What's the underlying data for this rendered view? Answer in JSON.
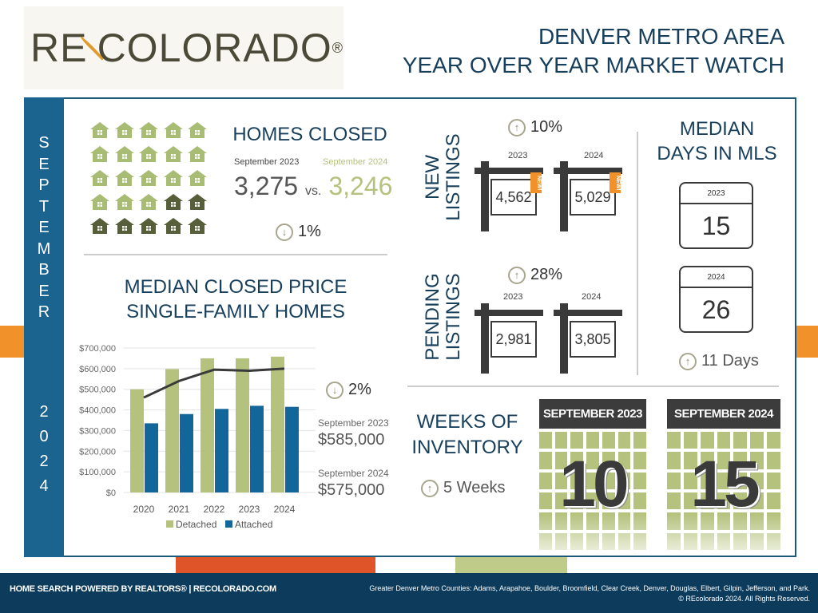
{
  "logo": {
    "text_left": "RE",
    "text_right": "COLORADO",
    "mark": "®"
  },
  "header": {
    "line1": "DENVER METRO AREA",
    "line2": "YEAR OVER YEAR MARKET WATCH"
  },
  "sidebar": {
    "month_letters": [
      "S",
      "E",
      "P",
      "T",
      "E",
      "M",
      "B",
      "E",
      "R"
    ],
    "year_digits": [
      "2",
      "0",
      "2",
      "4"
    ]
  },
  "colors": {
    "accent_blue": "#1b6490",
    "navy": "#173f5c",
    "green": "#a9bc74",
    "dark_green": "#575f3a",
    "orange": "#f0912a",
    "footer": "#0d3b5b"
  },
  "homes_closed": {
    "title": "HOMES CLOSED",
    "label_2023": "September 2023",
    "label_2024": "September 2024",
    "value_2023": "3,275",
    "vs": "vs.",
    "value_2024": "3,246",
    "change_icon": "arrow-down-circle",
    "change": "1%",
    "light_houses": 18,
    "dark_houses": 7
  },
  "median_price": {
    "title_line1": "MEDIAN CLOSED PRICE",
    "title_line2": "SINGLE-FAMILY HOMES",
    "change_icon": "arrow-down-circle",
    "change": "2%",
    "label_2023": "September 2023",
    "value_2023": "$585,000",
    "label_2024": "September 2024",
    "value_2024": "$575,000"
  },
  "chart_data": {
    "type": "bar",
    "categories": [
      "2020",
      "2021",
      "2022",
      "2023",
      "2024"
    ],
    "series": [
      {
        "name": "Detached",
        "color": "#b5c27d",
        "values": [
          500000,
          598000,
          650000,
          650000,
          658000
        ]
      },
      {
        "name": "Attached",
        "color": "#136699",
        "values": [
          335000,
          380000,
          405000,
          420000,
          415000
        ]
      }
    ],
    "line": {
      "type": "line",
      "color": "#3a3a3a",
      "values": [
        460000,
        540000,
        595000,
        590000,
        600000
      ]
    },
    "yticks": [
      "$0",
      "$100,000",
      "$200,000",
      "$300,000",
      "$400,000",
      "$500,000",
      "$600,000",
      "$700,000"
    ],
    "ylim": [
      0,
      700000
    ],
    "grid": true,
    "legend": "bottom"
  },
  "new_listings": {
    "title_line1": "NEW",
    "title_line2": "LISTINGS",
    "change_icon": "arrow-up-circle",
    "change": "10%",
    "year_2023": "2023",
    "year_2024": "2024",
    "value_2023": "4,562",
    "value_2024": "5,029",
    "ribbon": "NEW!"
  },
  "pending_listings": {
    "title_line1": "PENDING",
    "title_line2": "LISTINGS",
    "change_icon": "arrow-up-circle",
    "change": "28%",
    "year_2023": "2023",
    "year_2024": "2024",
    "value_2023": "2,981",
    "value_2024": "3,805"
  },
  "days_in_mls": {
    "title_line1": "MEDIAN",
    "title_line2": "DAYS IN MLS",
    "year_2023": "2023",
    "value_2023": "15",
    "year_2024": "2024",
    "value_2024": "26",
    "change_icon": "arrow-up-circle",
    "change": "11 Days"
  },
  "weeks_inventory": {
    "title_line1": "WEEKS OF",
    "title_line2": "INVENTORY",
    "change_icon": "arrow-up-circle",
    "change": "5 Weeks",
    "label_2023": "SEPTEMBER 2023",
    "value_2023": "10",
    "label_2024": "SEPTEMBER 2024",
    "value_2024": "15"
  },
  "footer": {
    "left": "HOME SEARCH POWERED BY REALTORS® | RECOLORADO.COM",
    "counties": "Greater Denver Metro Counties: Adams, Arapahoe, Boulder, Broomfield, Clear Creek, Denver, Douglas, Elbert, Gilpin, Jefferson, and Park.",
    "copyright": "© REcolorado 2024. All Rights Reserved."
  }
}
